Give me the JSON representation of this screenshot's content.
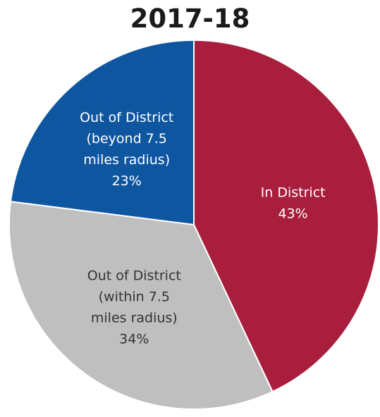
{
  "chart_data": {
    "type": "pie",
    "title": "2017-18",
    "slices": [
      {
        "label_lines": [
          "In District",
          "43%"
        ],
        "value": 43,
        "color": "#a81e3c",
        "label_color": "#ffffff"
      },
      {
        "label_lines": [
          "Out of District",
          "(within 7.5",
          "miles radius)",
          "34%"
        ],
        "value": 34,
        "color": "#bfbfbf",
        "label_color": "#333333"
      },
      {
        "label_lines": [
          "Out of District",
          "(beyond 7.5",
          "miles radius)",
          "23%"
        ],
        "value": 23,
        "color": "#0f56a0",
        "label_color": "#ffffff"
      }
    ],
    "start_angle_deg": 0,
    "direction": "clockwise",
    "legend": "none"
  }
}
